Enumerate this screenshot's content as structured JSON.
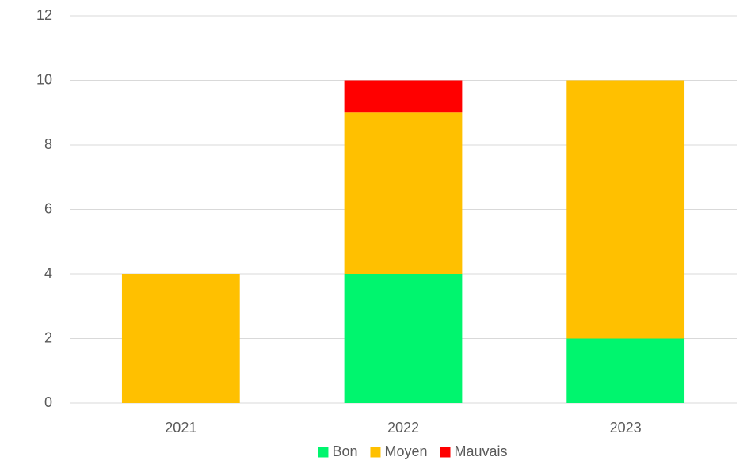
{
  "chart_data": {
    "type": "bar",
    "stacked": true,
    "categories": [
      "2021",
      "2022",
      "2023"
    ],
    "series": [
      {
        "name": "Bon",
        "color": "#00f56e",
        "values": [
          0,
          4,
          2
        ]
      },
      {
        "name": "Moyen",
        "color": "#ffc000",
        "values": [
          4,
          5,
          8
        ]
      },
      {
        "name": "Mauvais",
        "color": "#ff0000",
        "values": [
          0,
          1,
          0
        ]
      }
    ],
    "ylim": [
      0,
      12
    ],
    "yticks": [
      0,
      2,
      4,
      6,
      8,
      10,
      12
    ],
    "grid": true,
    "legend": "bottom"
  }
}
